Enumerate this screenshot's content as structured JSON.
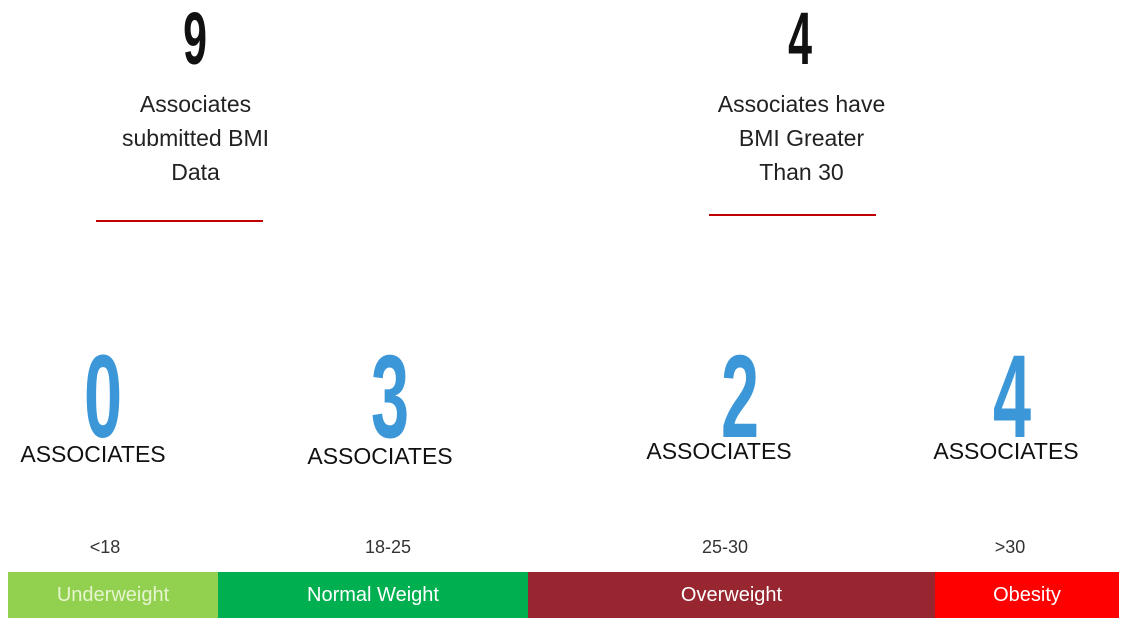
{
  "summary": [
    {
      "value": "9",
      "text": "Associates submitted BMI Data"
    },
    {
      "value": "4",
      "text": "Associates have BMI Greater Than 30"
    }
  ],
  "categories": [
    {
      "count": "0",
      "unit": "ASSOCIATES",
      "range": "<18",
      "label": "Underweight"
    },
    {
      "count": "3",
      "unit": "ASSOCIATES",
      "range": "18-25",
      "label": "Normal Weight"
    },
    {
      "count": "2",
      "unit": "ASSOCIATES",
      "range": "25-30",
      "label": "Overweight"
    },
    {
      "count": "4",
      "unit": "ASSOCIATES",
      "range": ">30",
      "label": "Obesity"
    }
  ]
}
